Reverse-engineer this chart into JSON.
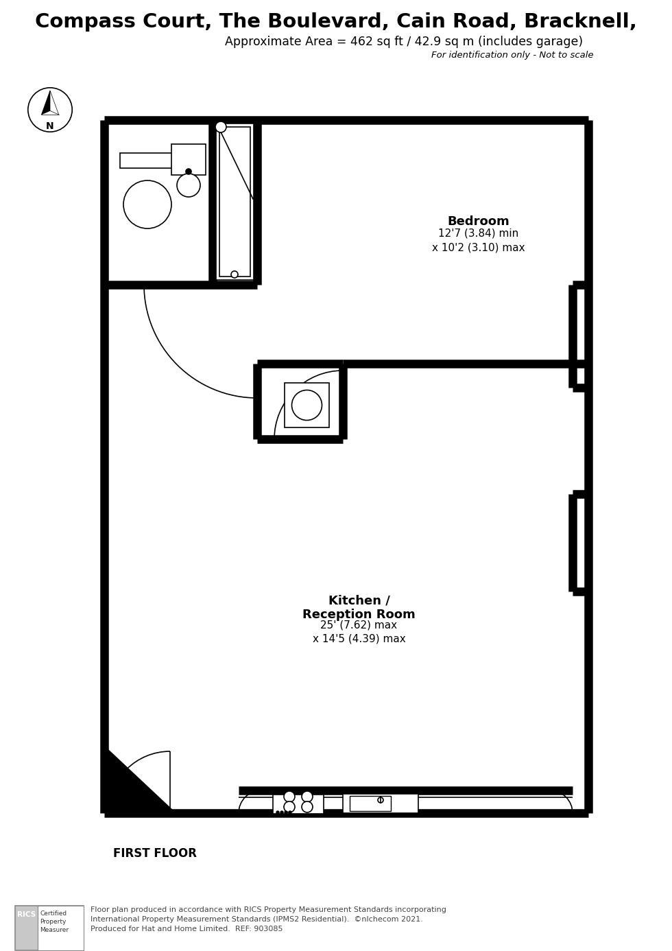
{
  "title_line1": "Compass Court, The Boulevard, Cain Road, Bracknell,",
  "title_line2": "Approximate Area = 462 sq ft / 42.9 sq m (includes garage)",
  "title_line3": "For identification only - Not to scale",
  "floor_label": "FIRST FLOOR",
  "bedroom_label": "Bedroom",
  "bedroom_dims": "12'7 (3.84) min\nx 10'2 (3.10) max",
  "kitchen_label": "Kitchen /\nReception Room",
  "kitchen_dims": "25' (7.62) max\nx 14'5 (4.39) max",
  "footer_text": "Floor plan produced in accordance with RICS Property Measurement Standards incorporating\nInternational Property Measurement Standards (IPMS2 Residential).  ©nlchecom 2021.\nProduced for Hat and Home Limited.  REF: 903085",
  "wall_color": "#000000",
  "bg_color": "#ffffff"
}
